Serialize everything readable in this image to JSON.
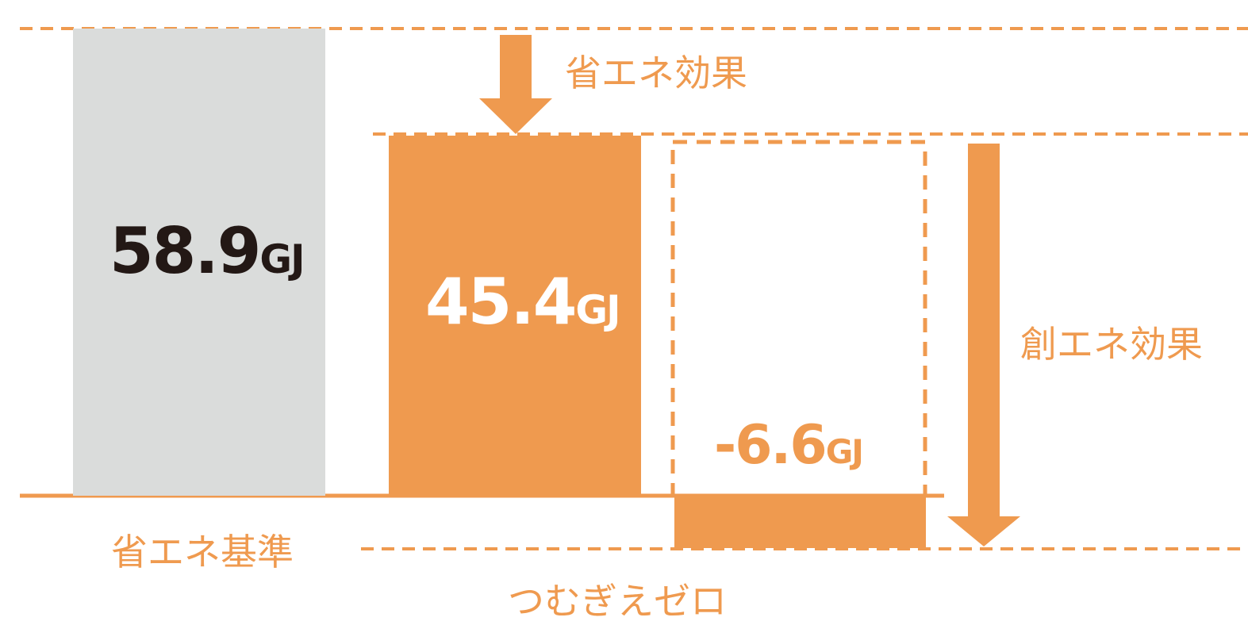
{
  "chart_data": {
    "type": "bar",
    "unit": "GJ",
    "categories": [
      "省エネ基準",
      "",
      "つむぎえゼロ"
    ],
    "values": [
      58.9,
      45.4,
      -6.6
    ],
    "value_labels": [
      "58.9",
      "45.4",
      "-6.6"
    ],
    "ylim": [
      -6.6,
      58.9
    ],
    "annotations": [
      "省エネ効果",
      "創エネ効果"
    ],
    "grid": false,
    "legend": "none"
  },
  "colors": {
    "orange": "#EF9A4F",
    "gray": "#DADCDB",
    "dark_text": "#231815",
    "white_text": "#FFFFFF"
  }
}
